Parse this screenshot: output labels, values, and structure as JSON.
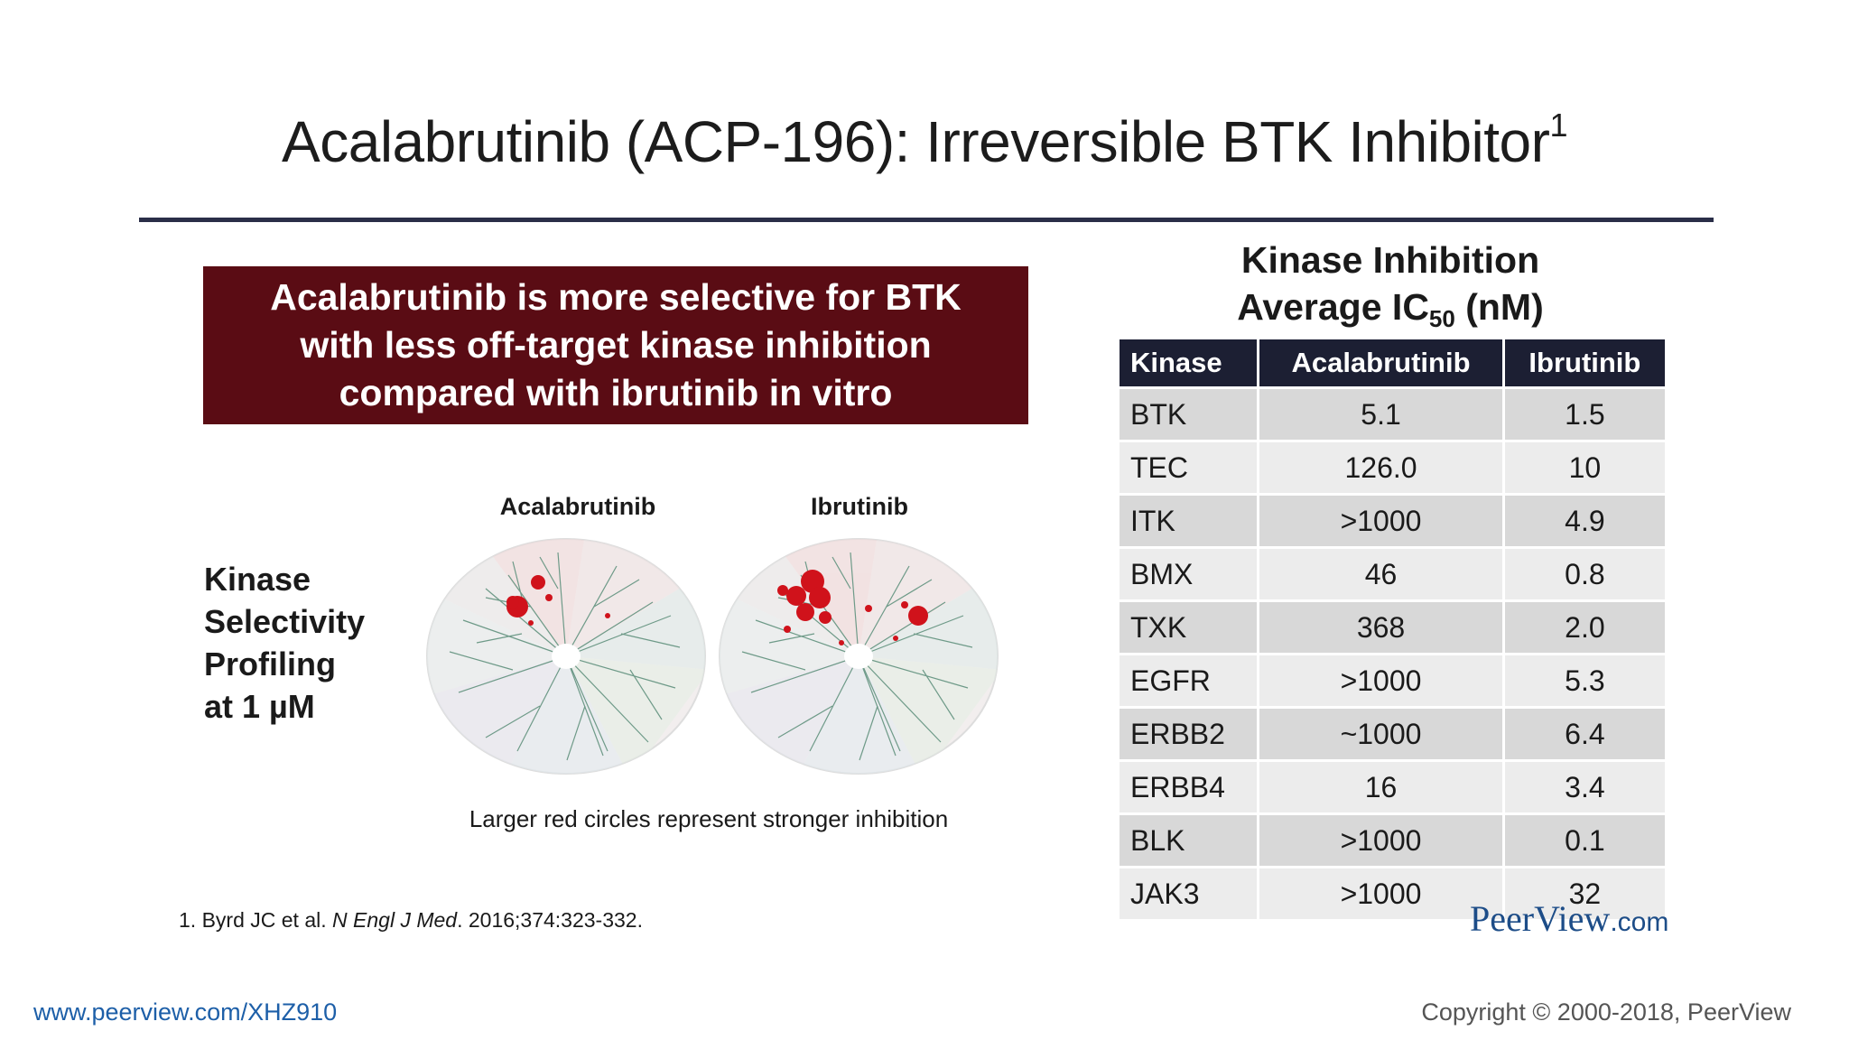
{
  "slide": {
    "title": "Acalabrutinib (ACP-196): Irreversible BTK Inhibitor",
    "title_superscript": "1",
    "callout": "Acalabrutinib is more selective for BTK\nwith less off-target kinase inhibition\ncompared with ibrutinib in vitro",
    "side_label": "Kinase\nSelectivity\nProfiling\nat 1 µM",
    "wheel_labels": [
      "Acalabrutinib",
      "Ibrutinib"
    ],
    "caption": "Larger red circles represent stronger inhibition",
    "footnote": {
      "prefix": "1. Byrd JC et al. ",
      "journal": "N Engl J Med",
      "suffix": ". 2016;374:323-332."
    }
  },
  "table": {
    "title_line1": "Kinase Inhibition",
    "title_line2_a": "Average IC",
    "title_sub": "50",
    "title_line2_b": " (nM)",
    "headers": [
      "Kinase",
      "Acalabrutinib",
      "Ibrutinib"
    ],
    "rows": [
      [
        "BTK",
        "5.1",
        "1.5"
      ],
      [
        "TEC",
        "126.0",
        "10"
      ],
      [
        "ITK",
        ">1000",
        "4.9"
      ],
      [
        "BMX",
        "46",
        "0.8"
      ],
      [
        "TXK",
        "368",
        "2.0"
      ],
      [
        "EGFR",
        ">1000",
        "5.3"
      ],
      [
        "ERBB2",
        "~1000",
        "6.4"
      ],
      [
        "ERBB4",
        "16",
        "3.4"
      ],
      [
        "BLK",
        ">1000",
        "0.1"
      ],
      [
        "JAK3",
        ">1000",
        "32"
      ]
    ]
  },
  "branding": {
    "logo_main": "PeerView",
    "logo_domain": ".com",
    "url": "www.peerview.com/XHZ910",
    "copyright": "Copyright © 2000-2018, PeerView"
  },
  "colors": {
    "callout_bg": "#5a0c14",
    "table_header": "#1c1f33",
    "rule": "#2a2e48",
    "inhibition_red": "#d0121b"
  }
}
